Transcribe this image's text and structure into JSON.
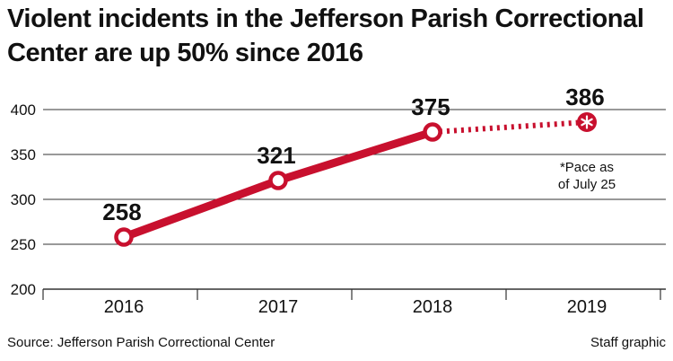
{
  "source": "Source: Jefferson Parish Correctional Center",
  "credit": "Staff graphic",
  "colors": {
    "line": "#c8102e",
    "grid": "#333333",
    "text": "#111111"
  },
  "chart_data": {
    "type": "line",
    "title": "Violent incidents in the Jefferson Parish Correctional Center are up 50% since 2016",
    "categories": [
      "2016",
      "2017",
      "2018",
      "2019"
    ],
    "series": [
      {
        "values": [
          258,
          321,
          375,
          386
        ],
        "data_labels": [
          "258",
          "321",
          "375",
          "386"
        ],
        "projected_from_index": 2
      }
    ],
    "projected_marker": "asterisk",
    "annotation": {
      "lines": [
        "*Pace as",
        "of July 25"
      ],
      "category": "2019"
    },
    "ylim": [
      200,
      400
    ],
    "yticks": [
      400,
      350,
      300,
      250,
      200
    ],
    "xlabel": "",
    "ylabel": "",
    "grid": "horizontal"
  }
}
